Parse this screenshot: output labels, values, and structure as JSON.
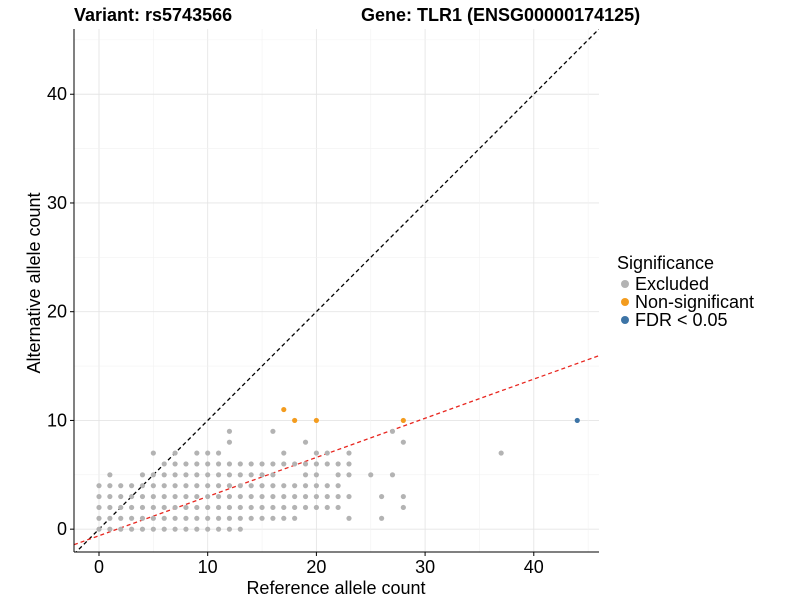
{
  "header": {
    "variant": "Variant: rs5743566",
    "gene": "Gene: TLR1 (ENSG00000174125)"
  },
  "legend": {
    "title": "Significance",
    "items": [
      {
        "label": "Excluded",
        "color": "#b3b3b3"
      },
      {
        "label": "Non-significant",
        "color": "#f39c1f"
      },
      {
        "label": "FDR < 0.05",
        "color": "#3d74a6"
      }
    ]
  },
  "chart_data": {
    "type": "scatter",
    "xlabel": "Reference allele count",
    "ylabel": "Alternative allele count",
    "xlim": [
      -2.3,
      46
    ],
    "ylim": [
      -2.1,
      46
    ],
    "xticks": [
      0,
      10,
      20,
      30,
      40
    ],
    "yticks": [
      0,
      10,
      20,
      30,
      40
    ],
    "grid": true,
    "legend_position": "right",
    "reference_lines": [
      {
        "name": "equal",
        "slope": 1,
        "intercept": 0,
        "color": "#000000",
        "dash": true
      },
      {
        "name": "fit",
        "slope": 0.36,
        "intercept": -0.6,
        "color": "#e8261f",
        "dash": true
      }
    ],
    "series": [
      {
        "group": "Excluded",
        "color": "#b3b3b3",
        "points": [
          [
            0,
            0
          ],
          [
            0,
            1
          ],
          [
            0,
            2
          ],
          [
            0,
            3
          ],
          [
            0,
            4
          ],
          [
            1,
            0
          ],
          [
            1,
            1
          ],
          [
            1,
            2
          ],
          [
            1,
            3
          ],
          [
            1,
            4
          ],
          [
            1,
            5
          ],
          [
            2,
            0
          ],
          [
            2,
            1
          ],
          [
            2,
            2
          ],
          [
            2,
            3
          ],
          [
            2,
            4
          ],
          [
            3,
            0
          ],
          [
            3,
            1
          ],
          [
            3,
            2
          ],
          [
            3,
            3
          ],
          [
            3,
            4
          ],
          [
            4,
            0
          ],
          [
            4,
            1
          ],
          [
            4,
            2
          ],
          [
            4,
            3
          ],
          [
            4,
            4
          ],
          [
            4,
            5
          ],
          [
            5,
            0
          ],
          [
            5,
            1
          ],
          [
            5,
            2
          ],
          [
            5,
            3
          ],
          [
            5,
            4
          ],
          [
            5,
            5
          ],
          [
            5,
            7
          ],
          [
            6,
            0
          ],
          [
            6,
            1
          ],
          [
            6,
            2
          ],
          [
            6,
            3
          ],
          [
            6,
            4
          ],
          [
            6,
            5
          ],
          [
            6,
            6
          ],
          [
            7,
            0
          ],
          [
            7,
            1
          ],
          [
            7,
            2
          ],
          [
            7,
            3
          ],
          [
            7,
            4
          ],
          [
            7,
            5
          ],
          [
            7,
            6
          ],
          [
            7,
            7
          ],
          [
            8,
            0
          ],
          [
            8,
            1
          ],
          [
            8,
            2
          ],
          [
            8,
            3
          ],
          [
            8,
            4
          ],
          [
            8,
            5
          ],
          [
            8,
            6
          ],
          [
            9,
            0
          ],
          [
            9,
            1
          ],
          [
            9,
            2
          ],
          [
            9,
            3
          ],
          [
            9,
            4
          ],
          [
            9,
            5
          ],
          [
            9,
            6
          ],
          [
            9,
            7
          ],
          [
            10,
            0
          ],
          [
            10,
            1
          ],
          [
            10,
            2
          ],
          [
            10,
            3
          ],
          [
            10,
            4
          ],
          [
            10,
            5
          ],
          [
            10,
            6
          ],
          [
            10,
            7
          ],
          [
            11,
            0
          ],
          [
            11,
            1
          ],
          [
            11,
            2
          ],
          [
            11,
            3
          ],
          [
            11,
            4
          ],
          [
            11,
            5
          ],
          [
            11,
            6
          ],
          [
            11,
            7
          ],
          [
            12,
            0
          ],
          [
            12,
            1
          ],
          [
            12,
            2
          ],
          [
            12,
            3
          ],
          [
            12,
            4
          ],
          [
            12,
            5
          ],
          [
            12,
            6
          ],
          [
            12,
            8
          ],
          [
            12,
            9
          ],
          [
            13,
            0
          ],
          [
            13,
            1
          ],
          [
            13,
            2
          ],
          [
            13,
            3
          ],
          [
            13,
            4
          ],
          [
            13,
            5
          ],
          [
            13,
            6
          ],
          [
            14,
            1
          ],
          [
            14,
            2
          ],
          [
            14,
            3
          ],
          [
            14,
            4
          ],
          [
            14,
            5
          ],
          [
            14,
            6
          ],
          [
            15,
            1
          ],
          [
            15,
            2
          ],
          [
            15,
            3
          ],
          [
            15,
            4
          ],
          [
            15,
            5
          ],
          [
            15,
            6
          ],
          [
            16,
            1
          ],
          [
            16,
            2
          ],
          [
            16,
            3
          ],
          [
            16,
            4
          ],
          [
            16,
            5
          ],
          [
            16,
            6
          ],
          [
            16,
            9
          ],
          [
            17,
            1
          ],
          [
            17,
            2
          ],
          [
            17,
            3
          ],
          [
            17,
            4
          ],
          [
            17,
            6
          ],
          [
            17,
            7
          ],
          [
            18,
            1
          ],
          [
            18,
            2
          ],
          [
            18,
            3
          ],
          [
            18,
            4
          ],
          [
            18,
            6
          ],
          [
            19,
            2
          ],
          [
            19,
            3
          ],
          [
            19,
            4
          ],
          [
            19,
            5
          ],
          [
            19,
            6
          ],
          [
            19,
            8
          ],
          [
            20,
            2
          ],
          [
            20,
            3
          ],
          [
            20,
            4
          ],
          [
            20,
            5
          ],
          [
            20,
            6
          ],
          [
            20,
            7
          ],
          [
            21,
            2
          ],
          [
            21,
            3
          ],
          [
            21,
            4
          ],
          [
            21,
            6
          ],
          [
            21,
            7
          ],
          [
            22,
            2
          ],
          [
            22,
            3
          ],
          [
            22,
            4
          ],
          [
            22,
            5
          ],
          [
            22,
            6
          ],
          [
            23,
            1
          ],
          [
            23,
            3
          ],
          [
            23,
            5
          ],
          [
            23,
            6
          ],
          [
            23,
            7
          ],
          [
            25,
            5
          ],
          [
            26,
            1
          ],
          [
            26,
            3
          ],
          [
            27,
            5
          ],
          [
            27,
            9
          ],
          [
            28,
            2
          ],
          [
            28,
            3
          ],
          [
            28,
            8
          ],
          [
            37,
            7
          ]
        ]
      },
      {
        "group": "Non-significant",
        "color": "#f39c1f",
        "points": [
          [
            17,
            11
          ],
          [
            18,
            10
          ],
          [
            20,
            10
          ],
          [
            28,
            10
          ]
        ]
      },
      {
        "group": "FDR < 0.05",
        "color": "#3d74a6",
        "points": [
          [
            44,
            10
          ]
        ]
      }
    ]
  }
}
